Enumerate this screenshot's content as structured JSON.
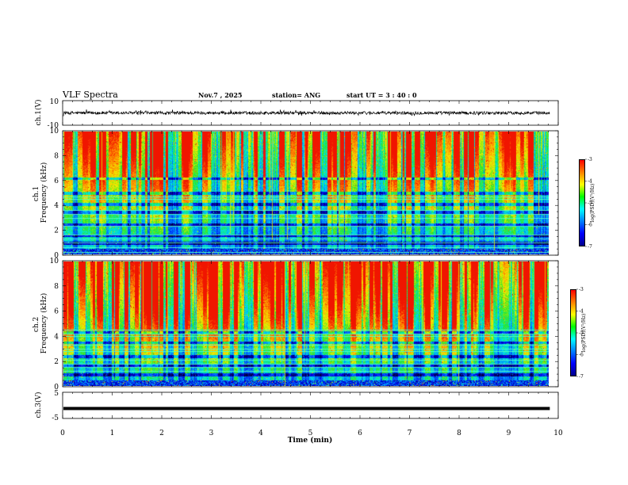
{
  "header": {
    "title": "VLF Spectra",
    "date": "Nov.7 , 2025",
    "station": "station= ANG",
    "start": "start UT = 3 : 40 : 0"
  },
  "chart_data": [
    {
      "type": "line",
      "ylabel": "ch.1(V)",
      "ylim": [
        -10,
        10
      ],
      "yticks": [
        "10",
        "-10"
      ],
      "trace": {
        "baseline_v": 0,
        "noise_amplitude_v": 2.5
      }
    },
    {
      "type": "heatmap",
      "ylabel": "ch.1 Frequency (kHz)",
      "ylim": [
        0,
        10
      ],
      "yticks": [
        "0",
        "2",
        "4",
        "6",
        "8",
        "10"
      ],
      "colorbar": {
        "label": "log(PSD)(V²/Hz)",
        "range": [
          -7,
          -3
        ],
        "ticks": [
          "-3",
          "-4",
          "-5",
          "-6",
          "-7"
        ]
      },
      "lines_khz": [
        0.2,
        0.6,
        1.0,
        1.3,
        1.6,
        2.3,
        3.0,
        3.3,
        3.6,
        4.5,
        4.7
      ],
      "bands_khz": [
        0.95,
        1.55,
        2.4,
        3.45,
        4.1,
        5.0,
        6.2
      ]
    },
    {
      "type": "heatmap",
      "ylabel": "ch.2 Frequency (kHz)",
      "ylim": [
        0,
        10
      ],
      "yticks": [
        "0",
        "2",
        "4",
        "6",
        "8",
        "10"
      ],
      "colorbar": {
        "label": "log(PSD)(V²/Hz)",
        "range": [
          -7,
          -3
        ],
        "ticks": [
          "-3",
          "-4",
          "-5",
          "-6",
          "-7"
        ]
      },
      "lines_khz": [
        1.2,
        1.5,
        1.8,
        2.1,
        2.8,
        3.0,
        3.3,
        4.0,
        4.2,
        4.5
      ],
      "bands_khz": [
        0.9,
        1.6,
        2.4,
        3.5,
        4.3
      ]
    },
    {
      "type": "line",
      "ylabel": "ch.3(V)",
      "ylim": [
        -5,
        5
      ],
      "yticks": [
        "5",
        "-5"
      ],
      "trace": {
        "baseline_v": -1.2,
        "noise_amplitude_v": 0.3
      }
    }
  ],
  "x_axis": {
    "label": "Time (min)",
    "range": [
      0,
      10
    ],
    "data_end": 9.83,
    "ticks": [
      "0",
      "1",
      "2",
      "3",
      "4",
      "5",
      "6",
      "7",
      "8",
      "9",
      "10"
    ]
  },
  "colors": {
    "colormap": [
      "#000000",
      "#00008b",
      "#0000ff",
      "#0080ff",
      "#00ffff",
      "#00ff00",
      "#ffff00",
      "#ff8000",
      "#ff0000",
      "#ffffff"
    ],
    "trace": "#000000"
  }
}
